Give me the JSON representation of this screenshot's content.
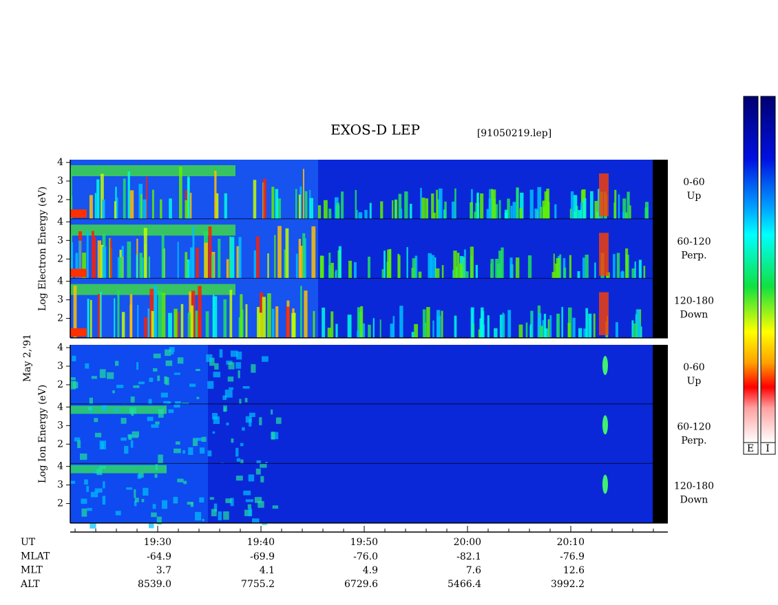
{
  "chart_data": {
    "type": "spectrogram",
    "title": "EXOS-D LEP",
    "file": "[91050219.lep]",
    "date_label": "May 2,'91",
    "xlim": [
      1161.53,
      1219.4
    ],
    "xticks": [
      {
        "value": 1170,
        "label": "19:30"
      },
      {
        "value": 1180,
        "label": "19:40"
      },
      {
        "value": 1190,
        "label": "19:50"
      },
      {
        "value": 1200,
        "label": "20:00"
      },
      {
        "value": 1210,
        "label": "20:10"
      }
    ],
    "xminorticks": [
      1162,
      1164,
      1166,
      1168,
      1172,
      1174,
      1176,
      1178,
      1182,
      1184,
      1186,
      1188,
      1192,
      1194,
      1196,
      1198,
      1202,
      1204,
      1206,
      1208,
      1212,
      1214,
      1216,
      1218
    ],
    "ylim": [
      0.95,
      4.15
    ],
    "yticks": [
      2,
      3,
      4
    ],
    "groups": [
      {
        "ylabel": "Log Electron Energy (eV)",
        "panels": [
          {
            "range": "0-60",
            "direction": "Up"
          },
          {
            "range": "60-120",
            "direction": "Perp."
          },
          {
            "range": "120-180",
            "direction": "Down"
          }
        ]
      },
      {
        "ylabel": "Log Ion Energy (eV)",
        "panels": [
          {
            "range": "0-60",
            "direction": "Up"
          },
          {
            "range": "60-120",
            "direction": "Perp."
          },
          {
            "range": "120-180",
            "direction": "Down"
          }
        ]
      }
    ],
    "orbit": {
      "labels": [
        "UT",
        "MLAT",
        "MLT",
        "ALT"
      ],
      "rows": [
        [
          "-64.9",
          "-69.9",
          "-76.0",
          "-82.1",
          "-76.9"
        ],
        [
          "3.7",
          "4.1",
          "4.9",
          "7.6",
          "12.6"
        ],
        [
          "8539.0",
          "7755.2",
          "6729.6",
          "5466.4",
          "3992.2"
        ]
      ]
    },
    "colorbar_labels": [
      "E",
      "I"
    ]
  }
}
